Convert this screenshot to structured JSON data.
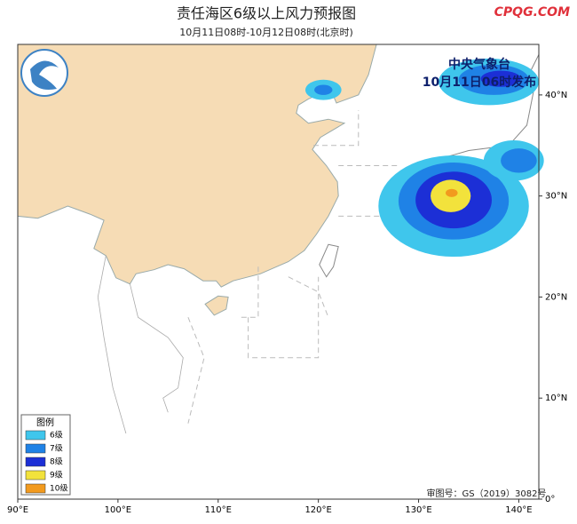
{
  "title": "责任海区6级以上风力预报图",
  "subtitle": "10月11日08时-10月12日08时(北京时)",
  "watermark": "CPQG.COM",
  "issuer": "中央气象台",
  "issue_time": "10月11日06时发布",
  "approval": "审图号：GS（2019）3082号",
  "legend": {
    "title": "图例",
    "items": [
      {
        "label": "6级",
        "color": "#3fc6ec"
      },
      {
        "label": "7级",
        "color": "#1f82e6"
      },
      {
        "label": "8级",
        "color": "#1c2fd6"
      },
      {
        "label": "9级",
        "color": "#f2e23c"
      },
      {
        "label": "10级",
        "color": "#f29a1e"
      }
    ]
  },
  "axes": {
    "xlim": [
      90,
      142
    ],
    "ylim": [
      0,
      45
    ],
    "xticks": [
      {
        "value": 90,
        "label": "90°E"
      },
      {
        "value": 100,
        "label": "100°E"
      },
      {
        "value": 110,
        "label": "110°E"
      },
      {
        "value": 120,
        "label": "120°E"
      },
      {
        "value": 130,
        "label": "130°E"
      },
      {
        "value": 140,
        "label": "140°E"
      }
    ],
    "yticks": [
      {
        "value": 0,
        "label": "0°"
      },
      {
        "value": 10,
        "label": "10°N"
      },
      {
        "value": 20,
        "label": "20°N"
      },
      {
        "value": 30,
        "label": "30°N"
      },
      {
        "value": 40,
        "label": "40°N"
      }
    ]
  }
}
